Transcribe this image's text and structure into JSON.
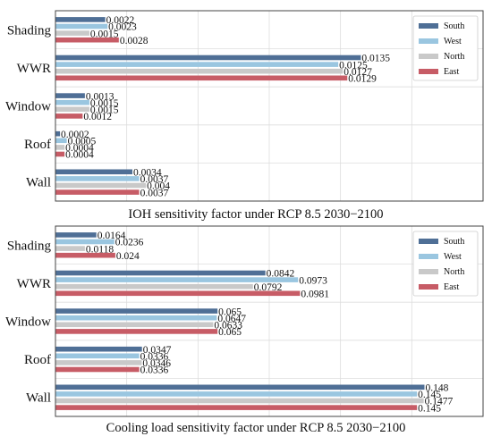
{
  "chart_data": [
    {
      "type": "bar",
      "orientation": "horizontal",
      "title": "IOH sensitivity factor under RCP 8.5  2030−2100",
      "categories": [
        "Shading",
        "WWR",
        "Window",
        "Roof",
        "Wall"
      ],
      "series": [
        {
          "name": "South",
          "values": [
            0.0022,
            0.0135,
            0.0013,
            0.0002,
            0.0034
          ],
          "labels": [
            "0.0022",
            "0.0135",
            "0.0013",
            "0.0002",
            "0.0034"
          ]
        },
        {
          "name": "West",
          "values": [
            0.0023,
            0.0125,
            0.0015,
            0.0005,
            0.0037
          ],
          "labels": [
            "0.0023",
            "0.0125",
            "0.0015",
            "0.0005",
            "0.0037"
          ]
        },
        {
          "name": "North",
          "values": [
            0.0015,
            0.0127,
            0.0015,
            0.0004,
            0.004
          ],
          "labels": [
            "0.0015",
            "0.0127",
            "0.0015",
            "0.0004",
            "0.004"
          ]
        },
        {
          "name": "East",
          "values": [
            0.0028,
            0.0129,
            0.0012,
            0.0004,
            0.0037
          ],
          "labels": [
            "0.0028",
            "0.0129",
            "0.0012",
            "0.0004",
            "0.0037"
          ]
        }
      ],
      "xlim": [
        0,
        0.0189
      ],
      "grid": true,
      "legend_position": "top-right"
    },
    {
      "type": "bar",
      "orientation": "horizontal",
      "title": "Cooling load sensitivity factor under RCP 8.5  2030−2100",
      "categories": [
        "Shading",
        "WWR",
        "Window",
        "Roof",
        "Wall"
      ],
      "series": [
        {
          "name": "South",
          "values": [
            0.0164,
            0.0842,
            0.065,
            0.0347,
            0.148
          ],
          "labels": [
            "0.0164",
            "0.0842",
            "0.065",
            "0.0347",
            "0.148"
          ]
        },
        {
          "name": "West",
          "values": [
            0.0236,
            0.0973,
            0.0647,
            0.0336,
            0.145
          ],
          "labels": [
            "0.0236",
            "0.0973",
            "0.0647",
            "0.0336",
            "0.145"
          ]
        },
        {
          "name": "North",
          "values": [
            0.0118,
            0.0792,
            0.0633,
            0.0346,
            0.1477
          ],
          "labels": [
            "0.0118",
            "0.0792",
            "0.0633",
            "0.0346",
            "0.1477"
          ]
        },
        {
          "name": "East",
          "values": [
            0.024,
            0.0981,
            0.065,
            0.0336,
            0.145
          ],
          "labels": [
            "0.024",
            "0.0981",
            "0.065",
            "0.0336",
            "0.145"
          ]
        }
      ],
      "xlim": [
        0,
        0.1715
      ],
      "grid": true,
      "legend_position": "top-right"
    }
  ],
  "colors": {
    "South": "#4f6f96",
    "West": "#9ac6e0",
    "North": "#c9c9c9",
    "East": "#c75c66",
    "axes_border": "#444444",
    "grid": "#dddddd"
  }
}
